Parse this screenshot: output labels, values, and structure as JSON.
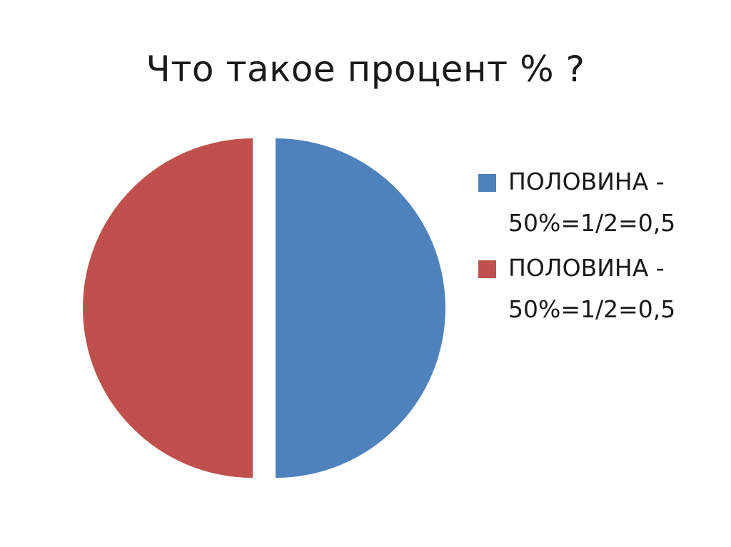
{
  "slide": {
    "title": "Что такое процент % ?"
  },
  "chart_data": {
    "type": "pie",
    "categories": [
      "ПОЛОВИНА - 50%=1/2=0,5",
      "ПОЛОВИНА - 50%=1/2=0,5"
    ],
    "values": [
      50,
      50
    ],
    "colors": [
      "#4f81bd",
      "#c0504d"
    ],
    "exploded": true,
    "legend": "right"
  }
}
